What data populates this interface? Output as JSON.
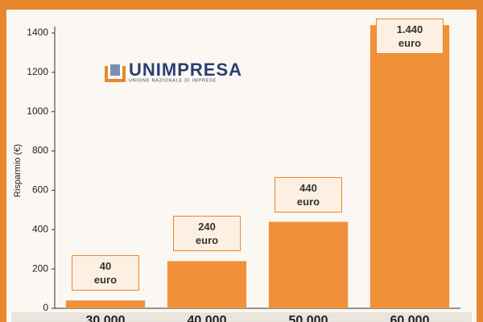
{
  "chart_data": {
    "type": "bar",
    "y_label": "Risparmio (€)",
    "categories": [
      "30.000",
      "40.000",
      "50.000",
      "60.000"
    ],
    "values": [
      40,
      240,
      440,
      1440
    ],
    "value_labels": [
      "40\neuro",
      "240\neuro",
      "440\neuro",
      "1.440\neuro"
    ],
    "color": "#f0913a",
    "ylim": [
      0,
      1400
    ],
    "yticks": [
      0,
      200,
      400,
      600,
      800,
      1000,
      1200,
      1400
    ],
    "grid": false
  },
  "logo": {
    "name": "UNIMPRESA",
    "tagline": "UNIONE NAZIONALE DI IMPRESE"
  }
}
